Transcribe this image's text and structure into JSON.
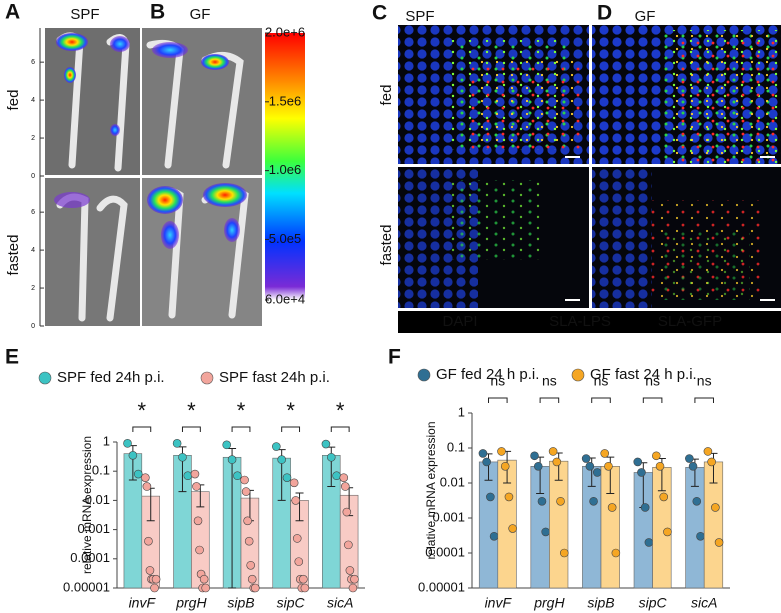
{
  "imaging": {
    "panels": [
      {
        "letter": "A",
        "title": "SPF"
      },
      {
        "letter": "B",
        "title": "GF"
      }
    ],
    "rows": [
      "fed",
      "fasted"
    ],
    "ruler_lim": [
      0,
      7.8
    ],
    "ruler_ticks": [
      6,
      4,
      2,
      0
    ],
    "colorbar": {
      "lim": [
        60000,
        2000000
      ],
      "ticks": [
        {
          "value": 2000000,
          "label": "2.0e+6"
        },
        {
          "value": 1500000,
          "label": "1.5e6"
        },
        {
          "value": 1000000,
          "label": "1.0e6"
        },
        {
          "value": 500000,
          "label": "5.0e5"
        },
        {
          "value": 60000,
          "label": "6.0e+4"
        }
      ]
    }
  },
  "fluorescence": {
    "panels": [
      {
        "letter": "C",
        "title": "SPF"
      },
      {
        "letter": "D",
        "title": "GF"
      }
    ],
    "rows": [
      "fed",
      "fasted"
    ],
    "channels": [
      {
        "name": "DAPI",
        "color": "#2a5cff"
      },
      {
        "name": "SLA-LPS",
        "color": "#1fb24a"
      },
      {
        "name": "SLA-GFP",
        "color": "#ff2a2a"
      }
    ]
  },
  "chart_data": [
    {
      "type": "bar",
      "panel_label": "E",
      "ylabel": "relative mRNA expression",
      "log_y": true,
      "categories": [
        "invF",
        "prgH",
        "sipB",
        "sipC",
        "sicA"
      ],
      "ylim": [
        1e-05,
        1
      ],
      "yticks": [
        1,
        0.1,
        0.01,
        0.001,
        0.0001,
        {
          "value": 1e-05,
          "label": "0.00001"
        }
      ],
      "annotations": [
        "*",
        "*",
        "*",
        "*",
        "*"
      ],
      "series": [
        {
          "name": "SPF fed 24h p.i.",
          "color": "#3cc3c3",
          "bar_color": "#7fd6d6",
          "values": [
            0.4,
            0.35,
            0.3,
            0.28,
            0.35
          ],
          "errors": [
            0.35,
            0.33,
            0.3,
            0.27,
            0.32
          ],
          "points": [
            [
              0.9,
              0.35,
              0.08
            ],
            [
              0.9,
              0.3,
              0.07
            ],
            [
              0.8,
              0.25,
              0.07
            ],
            [
              0.7,
              0.25,
              0.06
            ],
            [
              0.85,
              0.3,
              0.07
            ]
          ]
        },
        {
          "name": "SPF fast 24h p.i.",
          "color": "#f2a59c",
          "bar_color": "#f8cbc5",
          "values": [
            0.014,
            0.02,
            0.012,
            0.01,
            0.015
          ],
          "errors": [
            0.012,
            0.014,
            0.01,
            0.008,
            0.012
          ],
          "points": [
            [
              0.06,
              0.03,
              0.0004,
              4e-05,
              2e-05,
              2e-05,
              1e-05,
              2e-05
            ],
            [
              0.08,
              0.03,
              0.002,
              0.0002,
              3e-05,
              1e-05,
              2e-05,
              1e-05
            ],
            [
              0.05,
              0.02,
              0.002,
              0.0004,
              6e-05,
              2e-05,
              1e-05,
              1e-05
            ],
            [
              0.04,
              0.01,
              0.0005,
              8e-05,
              2e-05,
              1e-05,
              2e-05,
              1e-05
            ],
            [
              0.06,
              0.03,
              0.004,
              0.0003,
              4e-05,
              2e-05,
              1e-05,
              2e-05
            ]
          ]
        }
      ]
    },
    {
      "type": "bar",
      "panel_label": "F",
      "ylabel": "relative mRNA expression",
      "log_y": true,
      "categories": [
        "invF",
        "prgH",
        "sipB",
        "sipC",
        "sicA"
      ],
      "ylim": [
        1e-05,
        1
      ],
      "yticks": [
        1,
        0.1,
        0.01,
        0.001,
        0.0001,
        {
          "value": 1e-05,
          "label": "0.00001"
        }
      ],
      "annotations": [
        "ns",
        "ns",
        "ns",
        "ns",
        "ns"
      ],
      "series": [
        {
          "name": "GF fed 24 h p.i.",
          "color": "#2f6f93",
          "bar_color": "#8fb7d6",
          "values": [
            0.04,
            0.03,
            0.03,
            0.02,
            0.028
          ],
          "errors": [
            0.028,
            0.025,
            0.022,
            0.018,
            0.02
          ],
          "points": [
            [
              0.07,
              0.04,
              0.004,
              0.0003
            ],
            [
              0.06,
              0.03,
              0.003,
              0.0004
            ],
            [
              0.05,
              0.03,
              0.003,
              0.02
            ],
            [
              0.04,
              0.02,
              0.002,
              0.0002
            ],
            [
              0.05,
              0.03,
              0.003,
              0.0003
            ]
          ]
        },
        {
          "name": "GF fast 24 h p.i.",
          "color": "#f5a623",
          "bar_color": "#fcd58e",
          "values": [
            0.045,
            0.042,
            0.03,
            0.028,
            0.04
          ],
          "errors": [
            0.035,
            0.03,
            0.025,
            0.022,
            0.03
          ],
          "points": [
            [
              0.08,
              0.03,
              0.004,
              0.0005
            ],
            [
              0.08,
              0.04,
              0.003,
              0.0001
            ],
            [
              0.07,
              0.03,
              0.002,
              0.0001
            ],
            [
              0.06,
              0.03,
              0.004,
              0.0004
            ],
            [
              0.08,
              0.04,
              0.002,
              0.0002
            ]
          ]
        }
      ]
    }
  ]
}
